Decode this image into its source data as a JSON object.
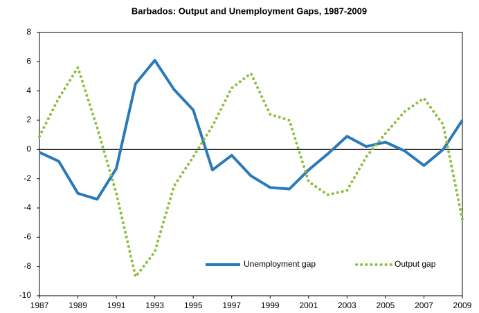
{
  "chart_data": {
    "type": "line",
    "title": "Barbados: Output and Unemployment Gaps, 1987-2009",
    "x": [
      1987,
      1988,
      1989,
      1990,
      1991,
      1992,
      1993,
      1994,
      1995,
      1996,
      1997,
      1998,
      1999,
      2000,
      2001,
      2002,
      2003,
      2004,
      2005,
      2006,
      2007,
      2008,
      2009
    ],
    "series": [
      {
        "name": "Unemployment gap",
        "color": "#2a7ab9",
        "dash": false,
        "values": [
          -0.2,
          -0.8,
          -3.0,
          -3.4,
          -1.3,
          4.5,
          6.1,
          4.1,
          2.7,
          -1.4,
          -0.4,
          -1.8,
          -2.6,
          -2.7,
          -1.4,
          -0.3,
          0.9,
          0.2,
          0.5,
          -0.1,
          -1.1,
          0.0,
          2.0
        ]
      },
      {
        "name": "Output gap",
        "color": "#8dbf3f",
        "dash": true,
        "values": [
          0.9,
          3.5,
          5.6,
          1.5,
          -3.0,
          -8.7,
          -7.0,
          -2.5,
          -0.5,
          1.6,
          4.2,
          5.2,
          2.4,
          2.0,
          -2.2,
          -3.1,
          -2.8,
          -0.5,
          1.1,
          2.6,
          3.5,
          1.7,
          -4.8
        ]
      }
    ],
    "xlim": [
      1987,
      2009
    ],
    "xticks": [
      1987,
      1989,
      1991,
      1993,
      1995,
      1997,
      1999,
      2001,
      2003,
      2005,
      2007,
      2009
    ],
    "ylim": [
      -10,
      8
    ],
    "yticks": [
      -10,
      -8,
      -6,
      -4,
      -2,
      0,
      2,
      4,
      6,
      8
    ],
    "grid": false,
    "legend": "lower-right"
  }
}
